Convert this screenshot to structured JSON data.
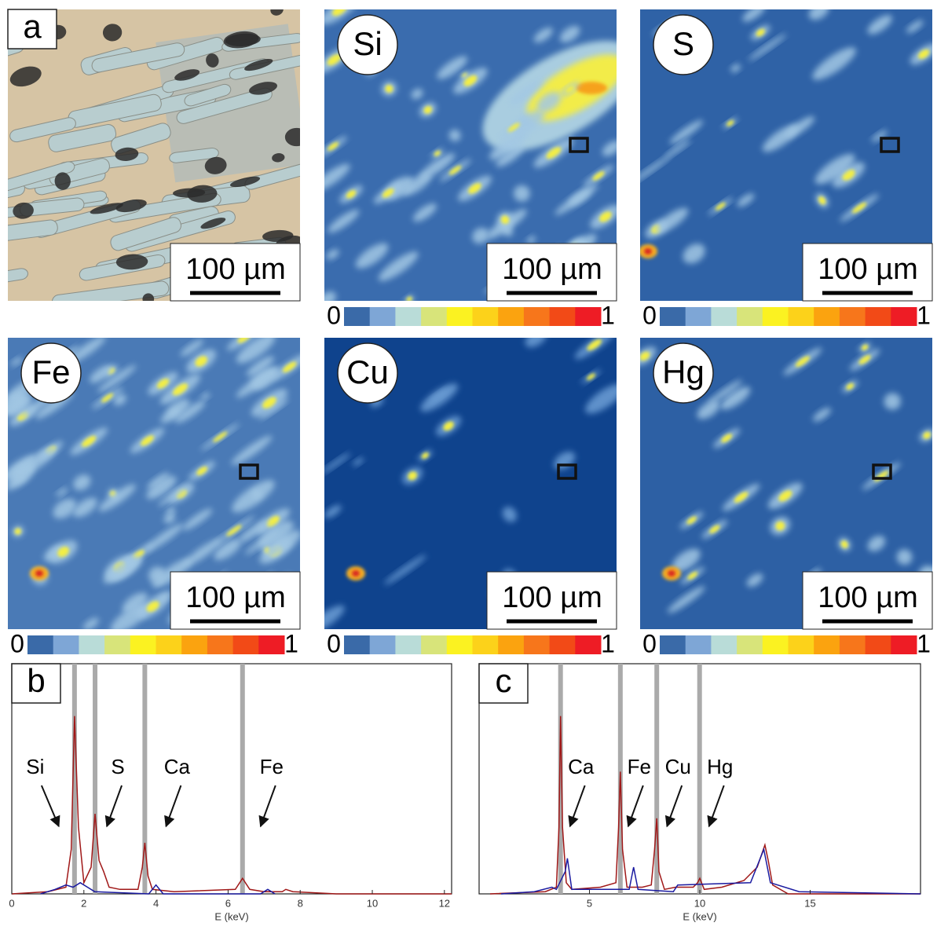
{
  "panels": [
    {
      "label": "a",
      "scale_bar": "100 µm"
    },
    {
      "label": "Si",
      "scale_bar": "100 µm"
    },
    {
      "label": "S",
      "scale_bar": "100 µm"
    },
    {
      "label": "Fe",
      "scale_bar": "100 µm"
    },
    {
      "label": "Cu",
      "scale_bar": "100 µm"
    },
    {
      "label": "Hg",
      "scale_bar": "100 µm"
    }
  ],
  "colorbar": {
    "min_label": "0",
    "max_label": "1",
    "colors": [
      "#3a6aa8",
      "#7ea6d6",
      "#b9dcd8",
      "#d8e47a",
      "#fbf221",
      "#fcd21a",
      "#fba30f",
      "#f7761b",
      "#f24a17",
      "#ee1c25"
    ]
  },
  "chart_data": [
    {
      "type": "line",
      "panel_label": "b",
      "xlabel": "E (keV)",
      "xlim": [
        0,
        12.2
      ],
      "ylim": [
        0,
        1
      ],
      "xticks": [
        0,
        2,
        4,
        6,
        8,
        10,
        12
      ],
      "peak_color": "#aaaaaa",
      "peaks": [
        {
          "label": "Si",
          "x": 1.74
        },
        {
          "label": "S",
          "x": 2.31
        },
        {
          "label": "Ca",
          "x": 3.69
        },
        {
          "label": "Fe",
          "x": 6.4
        }
      ],
      "series": [
        {
          "color": "#a01818",
          "x": [
            0,
            1.0,
            1.5,
            1.65,
            1.74,
            1.85,
            2.0,
            2.2,
            2.31,
            2.42,
            2.55,
            2.7,
            3.0,
            3.5,
            3.62,
            3.69,
            3.78,
            3.9,
            4.5,
            6.2,
            6.4,
            6.6,
            7.0,
            7.5,
            7.6,
            7.8,
            9,
            12.2
          ],
          "values": [
            0,
            0.01,
            0.03,
            0.2,
            0.8,
            0.3,
            0.05,
            0.12,
            0.36,
            0.15,
            0.1,
            0.03,
            0.02,
            0.02,
            0.12,
            0.23,
            0.08,
            0.02,
            0.01,
            0.02,
            0.07,
            0.02,
            0.01,
            0.01,
            0.02,
            0.01,
            0,
            0
          ]
        },
        {
          "color": "#1a1aa0",
          "x": [
            0.8,
            1.2,
            1.5,
            1.7,
            1.9,
            2.1,
            2.3,
            3.8,
            4.0,
            4.2,
            6.9,
            7.1,
            7.3
          ],
          "values": [
            0,
            0.02,
            0.04,
            0.03,
            0.05,
            0.03,
            0.01,
            0,
            0.04,
            0,
            0,
            0.02,
            0
          ]
        }
      ]
    },
    {
      "type": "line",
      "panel_label": "c",
      "xlabel": "E (keV)",
      "xlim": [
        0,
        20
      ],
      "ylim": [
        0,
        1
      ],
      "xticks": [
        5,
        10,
        15
      ],
      "peak_color": "#aaaaaa",
      "peaks": [
        {
          "label": "Ca",
          "x": 3.69
        },
        {
          "label": "Fe",
          "x": 6.4
        },
        {
          "label": "Cu",
          "x": 8.05
        },
        {
          "label": "Hg",
          "x": 9.99
        }
      ],
      "series": [
        {
          "color": "#a01818",
          "x": [
            0.5,
            3.0,
            3.5,
            3.62,
            3.69,
            3.78,
            3.95,
            4.2,
            5.5,
            6.2,
            6.32,
            6.4,
            6.5,
            6.7,
            7.4,
            7.8,
            7.95,
            8.05,
            8.15,
            8.4,
            8.9,
            9.7,
            9.9,
            10.0,
            10.2,
            11,
            12,
            12.6,
            12.95,
            13.1,
            13.3,
            14,
            20
          ],
          "values": [
            0,
            0.01,
            0.03,
            0.3,
            0.8,
            0.3,
            0.05,
            0.02,
            0.03,
            0.05,
            0.3,
            0.55,
            0.2,
            0.03,
            0.03,
            0.04,
            0.2,
            0.34,
            0.1,
            0.02,
            0.03,
            0.03,
            0.05,
            0.07,
            0.02,
            0.03,
            0.06,
            0.12,
            0.22,
            0.15,
            0.04,
            0,
            0
          ]
        },
        {
          "color": "#1a1aa0",
          "x": [
            1,
            2.5,
            3.3,
            3.5,
            3.9,
            4.0,
            4.2,
            6.8,
            7.0,
            7.2,
            8.8,
            9.0,
            12.3,
            12.9,
            13.2,
            14.5,
            20
          ],
          "values": [
            0,
            0.01,
            0.03,
            0.02,
            0.1,
            0.16,
            0.02,
            0.02,
            0.12,
            0.02,
            0.01,
            0.04,
            0.05,
            0.2,
            0.05,
            0.01,
            0
          ]
        }
      ]
    }
  ]
}
